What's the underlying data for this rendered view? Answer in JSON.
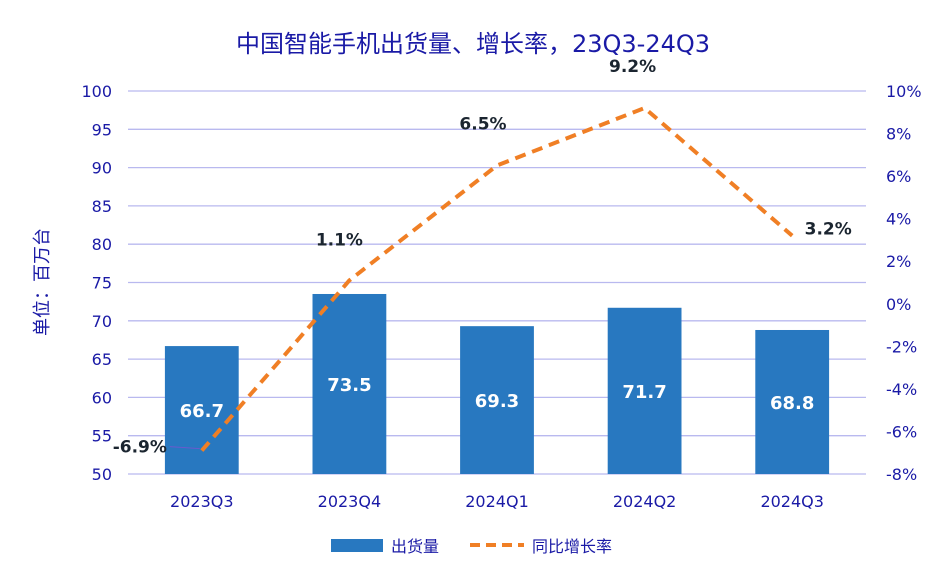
{
  "chart_data": {
    "type": "bar+line",
    "title": "中国智能手机出货量、增长率，23Q3-24Q3",
    "ylabel_left": "单位：百万台",
    "categories": [
      "2023Q3",
      "2023Q4",
      "2024Q1",
      "2024Q2",
      "2024Q3"
    ],
    "left_axis": {
      "min": 50,
      "max": 100,
      "step": 5,
      "tick_labels": [
        "50",
        "55",
        "60",
        "65",
        "70",
        "75",
        "80",
        "85",
        "90",
        "95",
        "100"
      ]
    },
    "right_axis": {
      "min": -8,
      "max": 10,
      "step": 2,
      "tick_labels": [
        "-8%",
        "-6%",
        "-4%",
        "-2%",
        "0%",
        "2%",
        "4%",
        "6%",
        "8%",
        "10%"
      ]
    },
    "series": [
      {
        "name": "出货量",
        "kind": "bar",
        "axis": "left",
        "color": "#2878c0",
        "values": [
          66.7,
          73.5,
          69.3,
          71.7,
          68.8
        ],
        "labels": [
          "66.7",
          "73.5",
          "69.3",
          "71.7",
          "68.8"
        ]
      },
      {
        "name": "同比增长率",
        "kind": "line",
        "axis": "right",
        "color": "#f07f25",
        "dashed": true,
        "values": [
          -6.9,
          1.1,
          6.5,
          9.2,
          3.2
        ],
        "labels": [
          "-6.9%",
          "1.1%",
          "6.5%",
          "9.2%",
          "3.2%"
        ]
      }
    ],
    "grid": true,
    "legend_position": "bottom-center",
    "colors": {
      "title": "#1a1aa6",
      "axis_text": "#1a1aa6",
      "gridline": "#b9b9ef",
      "label_dark": "#1b2530",
      "label_light": "#ffffff"
    }
  }
}
